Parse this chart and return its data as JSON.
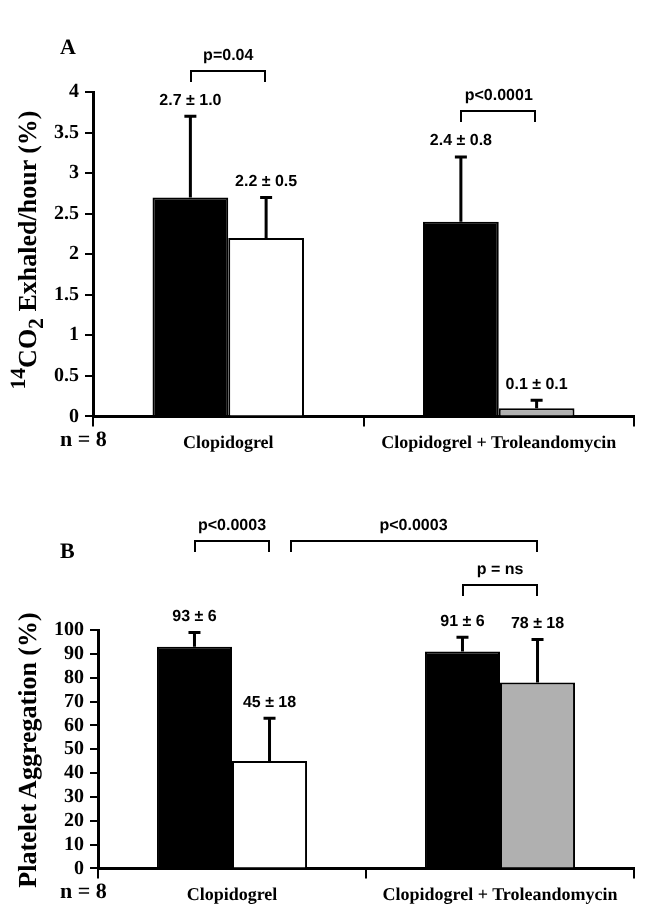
{
  "chart_data": [
    {
      "type": "bar",
      "title": "A",
      "ylabel": "$^{14}$CO$_{2}$ Exhaled/hour (%)",
      "categories": [
        "Clopidogrel",
        "Clopidogrel + Troleandomycin"
      ],
      "series": [
        {
          "colors": [
            "#000000",
            "#000000"
          ],
          "values": [
            2.7,
            2.4
          ],
          "errors": [
            [
              2.7,
              3.7
            ],
            [
              2.4,
              3.2
            ]
          ]
        },
        {
          "colors": [
            "#ffffff",
            "#b0b0b0"
          ],
          "values": [
            2.2,
            0.1
          ],
          "errors": [
            [
              2.2,
              2.7
            ],
            [
              0.1,
              0.2
            ]
          ]
        }
      ],
      "ylim": [
        0,
        4
      ],
      "yticks": [
        0,
        0.5,
        1,
        1.5,
        2,
        2.5,
        3,
        3.5,
        4
      ],
      "annotations": [
        "n = 8",
        "p=0.04",
        "p<0.0001",
        "2.7 ± 1.0",
        "2.2 ± 0.5",
        "2.4 ± 0.8",
        "0.1 ± 0.1"
      ]
    },
    {
      "type": "bar",
      "title": "B",
      "ylabel": "Platelet Aggregation (%)",
      "categories": [
        "Clopidogrel",
        "Clopidogrel + Troleandomycin"
      ],
      "series": [
        {
          "colors": [
            "#000000",
            "#000000"
          ],
          "values": [
            93,
            91
          ],
          "errors": [
            [
              93,
              99
            ],
            [
              91,
              97
            ]
          ]
        },
        {
          "colors": [
            "#ffffff",
            "#b0b0b0"
          ],
          "values": [
            45,
            78
          ],
          "errors": [
            [
              45,
              63
            ],
            [
              78,
              96
            ]
          ]
        }
      ],
      "ylim": [
        0,
        100
      ],
      "yticks": [
        0,
        10,
        20,
        30,
        40,
        50,
        60,
        70,
        80,
        90,
        100
      ],
      "annotations": [
        "n = 8",
        "p<0.0003",
        "p<0.0003",
        "p = ns",
        "93 ± 6",
        "45 ± 18",
        "91 ± 6",
        "78 ± 18"
      ]
    }
  ]
}
